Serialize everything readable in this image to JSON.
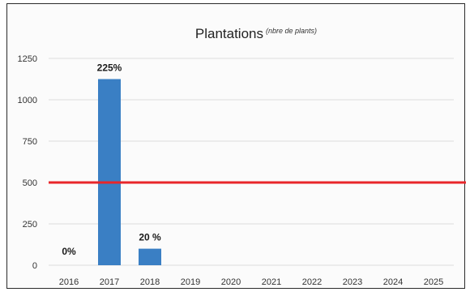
{
  "chart_data": {
    "type": "bar",
    "title": "Plantations",
    "subtitle": "(nbre de plants)",
    "xlabel": "",
    "ylabel": "",
    "categories": [
      "2016",
      "2017",
      "2018",
      "2019",
      "2020",
      "2021",
      "2022",
      "2023",
      "2024",
      "2025"
    ],
    "values": [
      0,
      1125,
      100,
      0,
      0,
      0,
      0,
      0,
      0,
      0
    ],
    "data_labels": [
      "0%",
      "225%",
      "20 %",
      "",
      "",
      "",
      "",
      "",
      "",
      ""
    ],
    "ylim": [
      0,
      1250
    ],
    "yticks": [
      0,
      250,
      500,
      750,
      1000,
      1250
    ],
    "reference_line": 500,
    "grid": true,
    "bar_color": "#3a7fc4",
    "reference_color": "#e8262a",
    "grid_color": "#dcdcdc"
  }
}
